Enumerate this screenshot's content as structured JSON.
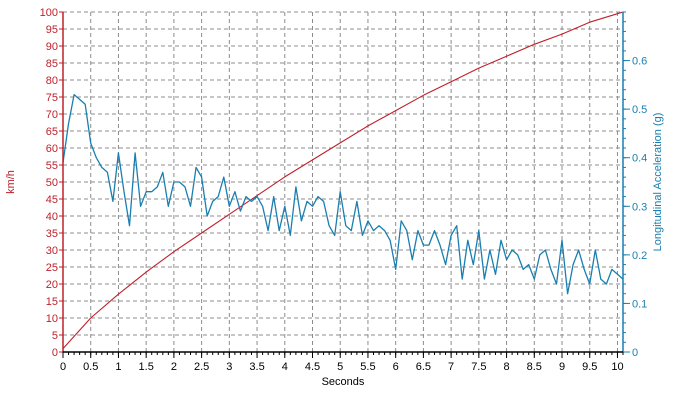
{
  "chart_data": {
    "type": "line",
    "xlabel": "Seconds",
    "ylabel_left": "km/h",
    "ylabel_right": "Longitudinal Acceleration (g)",
    "xlim": [
      0,
      10.1
    ],
    "ylim_left": [
      0,
      100
    ],
    "ylim_right": [
      0,
      0.7
    ],
    "grid": true,
    "x_ticks": [
      "0",
      "0.5",
      "1",
      "1.5",
      "2",
      "2.5",
      "3",
      "3.5",
      "4",
      "4.5",
      "5",
      "5.5",
      "6",
      "6.5",
      "7",
      "7.5",
      "8",
      "8.5",
      "9",
      "9.5",
      "10"
    ],
    "y_left_ticks": [
      "0",
      "5",
      "10",
      "15",
      "20",
      "25",
      "30",
      "35",
      "40",
      "45",
      "50",
      "55",
      "60",
      "65",
      "70",
      "75",
      "80",
      "85",
      "90",
      "95",
      "100"
    ],
    "y_right_ticks": [
      "0",
      "0.1",
      "0.2",
      "0.3",
      "0.4",
      "0.5",
      "0.6"
    ],
    "colors": {
      "speed": "#c0202a",
      "accel": "#1a7fb0",
      "left_axis": "#c0202a",
      "right_axis": "#1a7fb0",
      "grid": "#8c8c8c"
    },
    "series": [
      {
        "axis": "left",
        "x": [
          0,
          0.5,
          1,
          1.5,
          2,
          2.5,
          3,
          3.5,
          4,
          4.5,
          5,
          5.5,
          6,
          6.5,
          7,
          7.5,
          8,
          8.5,
          9,
          9.5,
          10,
          10.1
        ],
        "values": [
          1,
          10,
          17,
          23.5,
          29.5,
          35,
          40.5,
          46,
          51.5,
          56.5,
          61.5,
          66.5,
          71,
          75.5,
          79.5,
          83.5,
          87,
          90.5,
          93.5,
          97,
          99.5,
          100
        ]
      },
      {
        "axis": "right",
        "x": [
          0,
          0.1,
          0.2,
          0.3,
          0.4,
          0.5,
          0.6,
          0.7,
          0.8,
          0.9,
          1.0,
          1.1,
          1.2,
          1.3,
          1.4,
          1.5,
          1.6,
          1.7,
          1.8,
          1.9,
          2.0,
          2.1,
          2.2,
          2.3,
          2.4,
          2.5,
          2.6,
          2.7,
          2.8,
          2.9,
          3.0,
          3.1,
          3.2,
          3.3,
          3.4,
          3.5,
          3.6,
          3.7,
          3.8,
          3.9,
          4.0,
          4.1,
          4.2,
          4.3,
          4.4,
          4.5,
          4.6,
          4.7,
          4.8,
          4.9,
          5.0,
          5.1,
          5.2,
          5.3,
          5.4,
          5.5,
          5.6,
          5.7,
          5.8,
          5.9,
          6.0,
          6.1,
          6.2,
          6.3,
          6.4,
          6.5,
          6.6,
          6.7,
          6.8,
          6.9,
          7.0,
          7.1,
          7.2,
          7.3,
          7.4,
          7.5,
          7.6,
          7.7,
          7.8,
          7.9,
          8.0,
          8.1,
          8.2,
          8.3,
          8.4,
          8.5,
          8.6,
          8.7,
          8.8,
          8.9,
          9.0,
          9.1,
          9.2,
          9.3,
          9.4,
          9.5,
          9.6,
          9.7,
          9.8,
          9.9,
          10.0,
          10.1
        ],
        "values": [
          0.39,
          0.47,
          0.53,
          0.52,
          0.51,
          0.43,
          0.4,
          0.38,
          0.37,
          0.31,
          0.41,
          0.33,
          0.26,
          0.41,
          0.3,
          0.33,
          0.33,
          0.34,
          0.37,
          0.3,
          0.35,
          0.35,
          0.34,
          0.3,
          0.38,
          0.36,
          0.28,
          0.31,
          0.32,
          0.36,
          0.3,
          0.33,
          0.29,
          0.32,
          0.31,
          0.32,
          0.3,
          0.25,
          0.32,
          0.25,
          0.3,
          0.24,
          0.34,
          0.27,
          0.31,
          0.3,
          0.32,
          0.31,
          0.26,
          0.24,
          0.33,
          0.26,
          0.25,
          0.31,
          0.24,
          0.27,
          0.25,
          0.26,
          0.25,
          0.23,
          0.17,
          0.27,
          0.25,
          0.19,
          0.25,
          0.22,
          0.22,
          0.25,
          0.22,
          0.18,
          0.24,
          0.26,
          0.15,
          0.23,
          0.18,
          0.25,
          0.15,
          0.21,
          0.16,
          0.23,
          0.19,
          0.21,
          0.2,
          0.17,
          0.18,
          0.15,
          0.2,
          0.21,
          0.17,
          0.14,
          0.23,
          0.12,
          0.18,
          0.21,
          0.17,
          0.14,
          0.21,
          0.15,
          0.14,
          0.17,
          0.16,
          0.15
        ]
      }
    ]
  }
}
